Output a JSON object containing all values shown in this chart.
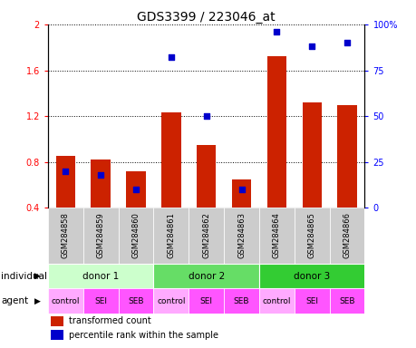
{
  "title": "GDS3399 / 223046_at",
  "samples": [
    "GSM284858",
    "GSM284859",
    "GSM284860",
    "GSM284861",
    "GSM284862",
    "GSM284863",
    "GSM284864",
    "GSM284865",
    "GSM284866"
  ],
  "transformed_count": [
    0.85,
    0.82,
    0.72,
    1.23,
    0.95,
    0.65,
    1.72,
    1.32,
    1.3
  ],
  "percentile_rank": [
    20,
    18,
    10,
    82,
    50,
    10,
    96,
    88,
    90
  ],
  "bar_bottom": 0.4,
  "ylim_left": [
    0.4,
    2.0
  ],
  "ylim_right": [
    0,
    100
  ],
  "yticks_left": [
    0.4,
    0.8,
    1.2,
    1.6,
    2.0
  ],
  "yticks_right": [
    0,
    25,
    50,
    75,
    100
  ],
  "ytick_labels_left": [
    "0.4",
    "0.8",
    "1.2",
    "1.6",
    "2"
  ],
  "ytick_labels_right": [
    "0",
    "25",
    "50",
    "75",
    "100%"
  ],
  "bar_color": "#cc2200",
  "dot_color": "#0000cc",
  "donor_info": [
    {
      "label": "donor 1",
      "start": 0,
      "end": 3,
      "color": "#ccffcc"
    },
    {
      "label": "donor 2",
      "start": 3,
      "end": 6,
      "color": "#66dd66"
    },
    {
      "label": "donor 3",
      "start": 6,
      "end": 9,
      "color": "#33cc33"
    }
  ],
  "agent_labels": [
    "control",
    "SEI",
    "SEB",
    "control",
    "SEI",
    "SEB",
    "control",
    "SEI",
    "SEB"
  ],
  "agent_colors": [
    "#ffaaff",
    "#ff55ff",
    "#ff55ff",
    "#ffaaff",
    "#ff55ff",
    "#ff55ff",
    "#ffaaff",
    "#ff55ff",
    "#ff55ff"
  ],
  "individual_label": "individual",
  "agent_label": "agent",
  "legend_bar_label": "transformed count",
  "legend_dot_label": "percentile rank within the sample",
  "title_fontsize": 10,
  "axis_fontsize": 7,
  "gsm_fontsize": 6,
  "row_fontsize": 7.5,
  "agent_fontsize": 6.5,
  "legend_fontsize": 7
}
